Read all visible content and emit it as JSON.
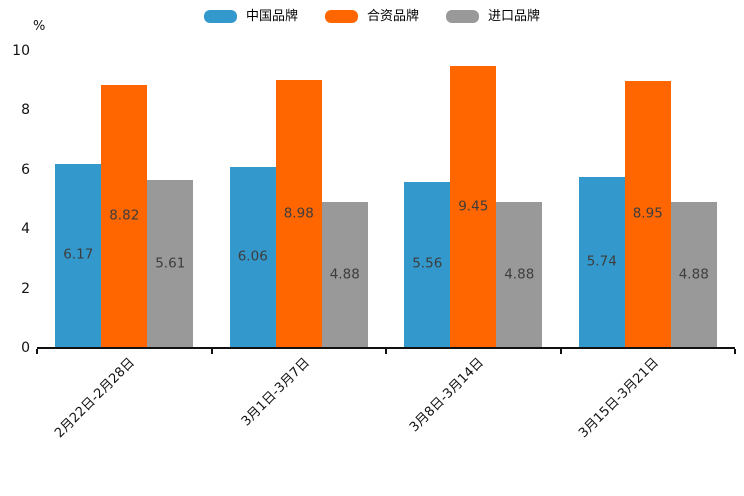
{
  "chart_data": {
    "type": "bar",
    "title": "",
    "categories": [
      "2月22日-2月28日",
      "3月1日-3月7日",
      "3月8日-3月14日",
      "3月15日-3月21日"
    ],
    "series": [
      {
        "name": "中国品牌",
        "color": "#3399CC",
        "values": [
          6.17,
          6.06,
          5.56,
          5.74
        ]
      },
      {
        "name": "合资品牌",
        "color": "#FF6600",
        "values": [
          8.82,
          8.98,
          9.45,
          8.95
        ]
      },
      {
        "name": "进口品牌",
        "color": "#999999",
        "values": [
          5.61,
          4.88,
          4.88,
          4.88
        ]
      }
    ],
    "value_labels": [
      "6.17",
      "8.82",
      "5.61",
      "6.06",
      "8.98",
      "4.88",
      "5.56",
      "9.45",
      "4.88",
      "5.74",
      "8.95",
      "4.88"
    ],
    "xlabel": "",
    "ylabel": "%",
    "ylim": [
      0,
      10
    ],
    "yticks": [
      0,
      2,
      4,
      6,
      8,
      10
    ],
    "grid": false,
    "legend_position": "top",
    "axis_color": "#111111",
    "label_color": "#3d3d3d"
  }
}
